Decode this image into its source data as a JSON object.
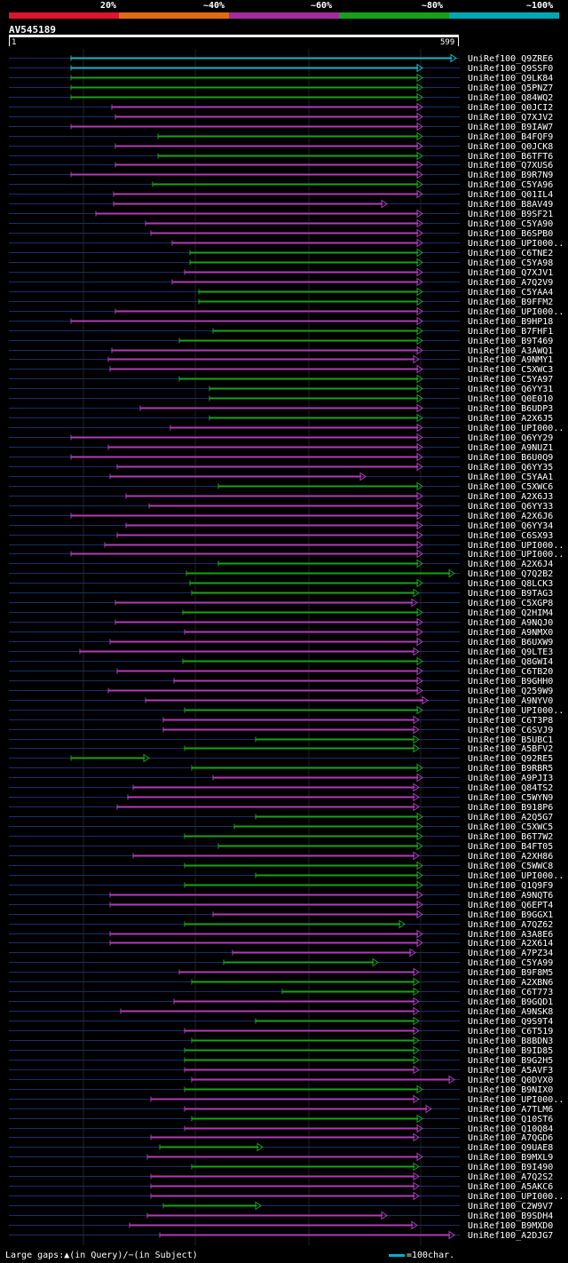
{
  "legend": {
    "colors": [
      "#e0142c",
      "#e06a14",
      "#a32c9c",
      "#18a018",
      "#00a8b4"
    ],
    "labels": [
      "20%",
      "~40%",
      "~60%",
      "~80%",
      "~100%"
    ]
  },
  "query": {
    "name": "AV545189",
    "start": "1",
    "end": "599"
  },
  "colors": {
    "magenta": "#b13bb8",
    "green": "#16a416",
    "cyan": "#14b8c8",
    "track": "#1a2e6a",
    "mark": "#ffff66"
  },
  "hits": [
    {
      "name": "UniRef100_Q9ZRE6",
      "x1": 80,
      "x2": 514,
      "c": "cyan"
    },
    {
      "name": "UniRef100_Q9SSF0",
      "x1": 80,
      "x2": 476,
      "c": "cyan"
    },
    {
      "name": "UniRef100_Q9LK84",
      "x1": 80,
      "x2": 476,
      "c": "green"
    },
    {
      "name": "UniRef100_Q5PNZ7",
      "x1": 80,
      "x2": 476,
      "c": "green"
    },
    {
      "name": "UniRef100_Q84WQ2",
      "x1": 80,
      "x2": 476,
      "c": "green"
    },
    {
      "name": "UniRef100_Q0JCI2",
      "x1": 126,
      "x2": 476,
      "c": "magenta"
    },
    {
      "name": "UniRef100_Q7XJV2",
      "x1": 130,
      "x2": 476,
      "c": "magenta"
    },
    {
      "name": "UniRef100_B9IAW7",
      "x1": 80,
      "x2": 476,
      "c": "magenta"
    },
    {
      "name": "UniRef100_B4FQF9",
      "x1": 178,
      "x2": 476,
      "c": "green"
    },
    {
      "name": "UniRef100_Q0JCK8",
      "x1": 130,
      "x2": 476,
      "c": "magenta"
    },
    {
      "name": "UniRef100_B6TFT6",
      "x1": 178,
      "x2": 476,
      "c": "green"
    },
    {
      "name": "UniRef100_Q7XUS6",
      "x1": 130,
      "x2": 476,
      "c": "magenta"
    },
    {
      "name": "UniRef100_B9R7N9",
      "x1": 80,
      "x2": 476,
      "c": "magenta"
    },
    {
      "name": "UniRef100_C5YA96",
      "x1": 172,
      "x2": 476,
      "c": "green"
    },
    {
      "name": "UniRef100_Q01IL4",
      "x1": 128,
      "x2": 476,
      "c": "magenta"
    },
    {
      "name": "UniRef100_B8AV49",
      "x1": 128,
      "x2": 436,
      "c": "magenta"
    },
    {
      "name": "UniRef100_B9SF21",
      "x1": 108,
      "x2": 476,
      "c": "magenta"
    },
    {
      "name": "UniRef100_C5YA90",
      "x1": 164,
      "x2": 476,
      "c": "magenta"
    },
    {
      "name": "UniRef100_B6SPB0",
      "x1": 170,
      "x2": 476,
      "c": "magenta"
    },
    {
      "name": "UniRef100_UPI000..",
      "x1": 194,
      "x2": 476,
      "c": "magenta"
    },
    {
      "name": "UniRef100_C6TNE2",
      "x1": 214,
      "x2": 476,
      "c": "green"
    },
    {
      "name": "UniRef100_C5YA98",
      "x1": 214,
      "x2": 476,
      "c": "green"
    },
    {
      "name": "UniRef100_Q7XJV1",
      "x1": 208,
      "x2": 476,
      "c": "magenta"
    },
    {
      "name": "UniRef100_A7Q2V9",
      "x1": 194,
      "x2": 476,
      "c": "magenta"
    },
    {
      "name": "UniRef100_C5YAA4",
      "x1": 224,
      "x2": 476,
      "c": "green"
    },
    {
      "name": "UniRef100_B9FFM2",
      "x1": 224,
      "x2": 476,
      "c": "green"
    },
    {
      "name": "UniRef100_UPI000..",
      "x1": 130,
      "x2": 476,
      "c": "magenta"
    },
    {
      "name": "UniRef100_B9HP18",
      "x1": 80,
      "x2": 476,
      "c": "magenta"
    },
    {
      "name": "UniRef100_B7FHF1",
      "x1": 240,
      "x2": 476,
      "c": "green"
    },
    {
      "name": "UniRef100_B9T469",
      "x1": 202,
      "x2": 476,
      "c": "green"
    },
    {
      "name": "UniRef100_A3AWQ1",
      "x1": 126,
      "x2": 476,
      "c": "magenta"
    },
    {
      "name": "UniRef100_A9NMY1",
      "x1": 122,
      "x2": 472,
      "c": "magenta"
    },
    {
      "name": "UniRef100_C5XWC3",
      "x1": 124,
      "x2": 476,
      "c": "magenta"
    },
    {
      "name": "UniRef100_C5YA97",
      "x1": 202,
      "x2": 476,
      "c": "green"
    },
    {
      "name": "UniRef100_Q6YY31",
      "x1": 236,
      "x2": 476,
      "c": "green"
    },
    {
      "name": "UniRef100_Q0E010",
      "x1": 236,
      "x2": 476,
      "c": "green"
    },
    {
      "name": "UniRef100_B6UDP3",
      "x1": 158,
      "x2": 476,
      "c": "magenta"
    },
    {
      "name": "UniRef100_A2X6J5",
      "x1": 236,
      "x2": 476,
      "c": "green"
    },
    {
      "name": "UniRef100_UPI000..",
      "x1": 192,
      "x2": 476,
      "c": "magenta"
    },
    {
      "name": "UniRef100_Q6YY29",
      "x1": 80,
      "x2": 476,
      "c": "magenta"
    },
    {
      "name": "UniRef100_A9NUZ1",
      "x1": 122,
      "x2": 476,
      "c": "magenta"
    },
    {
      "name": "UniRef100_B6U0Q9",
      "x1": 80,
      "x2": 476,
      "c": "magenta"
    },
    {
      "name": "UniRef100_Q6YY35",
      "x1": 132,
      "x2": 476,
      "c": "magenta"
    },
    {
      "name": "UniRef100_C5YAA1",
      "x1": 124,
      "x2": 412,
      "c": "magenta"
    },
    {
      "name": "UniRef100_C5XWC6",
      "x1": 246,
      "x2": 476,
      "c": "green"
    },
    {
      "name": "UniRef100_A2X6J3",
      "x1": 142,
      "x2": 476,
      "c": "magenta"
    },
    {
      "name": "UniRef100_Q6YY33",
      "x1": 168,
      "x2": 476,
      "c": "magenta"
    },
    {
      "name": "UniRef100_A2X6J6",
      "x1": 80,
      "x2": 476,
      "c": "magenta"
    },
    {
      "name": "UniRef100_Q6YY34",
      "x1": 142,
      "x2": 476,
      "c": "magenta"
    },
    {
      "name": "UniRef100_C6SX93",
      "x1": 132,
      "x2": 476,
      "c": "magenta"
    },
    {
      "name": "UniRef100_UPI000..",
      "x1": 118,
      "x2": 476,
      "c": "magenta"
    },
    {
      "name": "UniRef100_UPI000..",
      "x1": 80,
      "x2": 476,
      "c": "magenta"
    },
    {
      "name": "UniRef100_A2X6J4",
      "x1": 246,
      "x2": 476,
      "c": "green"
    },
    {
      "name": "UniRef100_Q7Q2B2",
      "x1": 210,
      "x2": 512,
      "c": "green"
    },
    {
      "name": "UniRef100_Q8LCK3",
      "x1": 214,
      "x2": 476,
      "c": "green"
    },
    {
      "name": "UniRef100_B9TAG3",
      "x1": 216,
      "x2": 472,
      "c": "green"
    },
    {
      "name": "UniRef100_C5XGP8",
      "x1": 130,
      "x2": 470,
      "c": "magenta"
    },
    {
      "name": "UniRef100_Q2HIM4",
      "x1": 206,
      "x2": 476,
      "c": "green"
    },
    {
      "name": "UniRef100_A9NQJ0",
      "x1": 130,
      "x2": 476,
      "c": "magenta"
    },
    {
      "name": "UniRef100_A9NMX0",
      "x1": 208,
      "x2": 476,
      "c": "magenta"
    },
    {
      "name": "UniRef100_B6UXW9",
      "x1": 124,
      "x2": 476,
      "c": "magenta"
    },
    {
      "name": "UniRef100_Q9LTE3",
      "x1": 90,
      "x2": 472,
      "c": "magenta"
    },
    {
      "name": "UniRef100_Q8GWI4",
      "x1": 206,
      "x2": 476,
      "c": "green"
    },
    {
      "name": "UniRef100_C6TB20",
      "x1": 132,
      "x2": 476,
      "c": "magenta"
    },
    {
      "name": "UniRef100_B9GHH0",
      "x1": 196,
      "x2": 476,
      "c": "magenta"
    },
    {
      "name": "UniRef100_Q259W9",
      "x1": 122,
      "x2": 476,
      "c": "magenta"
    },
    {
      "name": "UniRef100_A9NYV0",
      "x1": 164,
      "x2": 482,
      "c": "magenta"
    },
    {
      "name": "UniRef100_UPI000..",
      "x1": 208,
      "x2": 476,
      "c": "green"
    },
    {
      "name": "UniRef100_C6T3P8",
      "x1": 184,
      "x2": 472,
      "c": "magenta"
    },
    {
      "name": "UniRef100_C6SVJ9",
      "x1": 184,
      "x2": 472,
      "c": "magenta"
    },
    {
      "name": "UniRef100_B5UBC1",
      "x1": 288,
      "x2": 472,
      "c": "green"
    },
    {
      "name": "UniRef100_A5BFV2",
      "x1": 208,
      "x2": 472,
      "c": "green"
    },
    {
      "name": "UniRef100_Q92RE5",
      "x1": 80,
      "x2": 168,
      "c": "green"
    },
    {
      "name": "UniRef100_B9RBR5",
      "x1": 216,
      "x2": 476,
      "c": "green"
    },
    {
      "name": "UniRef100_A9PJI3",
      "x1": 240,
      "x2": 476,
      "c": "magenta"
    },
    {
      "name": "UniRef100_Q84TS2",
      "x1": 150,
      "x2": 472,
      "c": "magenta"
    },
    {
      "name": "UniRef100_C5WYN9",
      "x1": 144,
      "x2": 472,
      "c": "magenta"
    },
    {
      "name": "UniRef100_B918P6",
      "x1": 132,
      "x2": 472,
      "c": "magenta"
    },
    {
      "name": "UniRef100_A2Q5G7",
      "x1": 288,
      "x2": 476,
      "c": "green"
    },
    {
      "name": "UniRef100_C5XWC5",
      "x1": 264,
      "x2": 476,
      "c": "green"
    },
    {
      "name": "UniRef100_B6T7W2",
      "x1": 208,
      "x2": 476,
      "c": "green"
    },
    {
      "name": "UniRef100_B4FT05",
      "x1": 246,
      "x2": 476,
      "c": "green"
    },
    {
      "name": "UniRef100_A2XH86",
      "x1": 150,
      "x2": 472,
      "c": "magenta"
    },
    {
      "name": "UniRef100_C5WWC8",
      "x1": 208,
      "x2": 476,
      "c": "green"
    },
    {
      "name": "UniRef100_UPI000..",
      "x1": 288,
      "x2": 476,
      "c": "green"
    },
    {
      "name": "UniRef100_Q1Q9F9",
      "x1": 208,
      "x2": 476,
      "c": "green"
    },
    {
      "name": "UniRef100_A9NQT6",
      "x1": 124,
      "x2": 476,
      "c": "magenta"
    },
    {
      "name": "UniRef100_Q6EPT4",
      "x1": 124,
      "x2": 476,
      "c": "magenta"
    },
    {
      "name": "UniRef100_B9GGX1",
      "x1": 240,
      "x2": 476,
      "c": "magenta"
    },
    {
      "name": "UniRef100_A7QZ62",
      "x1": 208,
      "x2": 456,
      "c": "green"
    },
    {
      "name": "UniRef100_A3A8E6",
      "x1": 124,
      "x2": 476,
      "c": "magenta"
    },
    {
      "name": "UniRef100_A2X614",
      "x1": 124,
      "x2": 476,
      "c": "magenta"
    },
    {
      "name": "UniRef100_A7PZ34",
      "x1": 262,
      "x2": 468,
      "c": "magenta"
    },
    {
      "name": "UniRef100_C5YA99",
      "x1": 252,
      "x2": 426,
      "c": "green"
    },
    {
      "name": "UniRef100_B9F8M5",
      "x1": 202,
      "x2": 472,
      "c": "magenta"
    },
    {
      "name": "UniRef100_A2XBN6",
      "x1": 216,
      "x2": 472,
      "c": "green"
    },
    {
      "name": "UniRef100_C6T773",
      "x1": 318,
      "x2": 472,
      "c": "green"
    },
    {
      "name": "UniRef100_B9GQD1",
      "x1": 196,
      "x2": 472,
      "c": "magenta"
    },
    {
      "name": "UniRef100_A9NSK8",
      "x1": 136,
      "x2": 472,
      "c": "magenta"
    },
    {
      "name": "UniRef100_Q9S9T4",
      "x1": 288,
      "x2": 472,
      "c": "green"
    },
    {
      "name": "UniRef100_C6T519",
      "x1": 208,
      "x2": 472,
      "c": "magenta"
    },
    {
      "name": "UniRef100_B8BDN3",
      "x1": 216,
      "x2": 472,
      "c": "green"
    },
    {
      "name": "UniRef100_B9ID85",
      "x1": 208,
      "x2": 472,
      "c": "green"
    },
    {
      "name": "UniRef100_B9G2H5",
      "x1": 208,
      "x2": 472,
      "c": "green"
    },
    {
      "name": "UniRef100_A5AVF3",
      "x1": 208,
      "x2": 472,
      "c": "magenta"
    },
    {
      "name": "UniRef100_Q0DVX0",
      "x1": 216,
      "x2": 512,
      "c": "magenta"
    },
    {
      "name": "UniRef100_B9NIX0",
      "x1": 208,
      "x2": 476,
      "c": "green"
    },
    {
      "name": "UniRef100_UPI000..",
      "x1": 170,
      "x2": 472,
      "c": "magenta"
    },
    {
      "name": "UniRef100_A7TLM6",
      "x1": 208,
      "x2": 486,
      "c": "magenta"
    },
    {
      "name": "UniRef100_Q10ST6",
      "x1": 216,
      "x2": 476,
      "c": "green"
    },
    {
      "name": "UniRef100_Q10Q84",
      "x1": 208,
      "x2": 476,
      "c": "magenta"
    },
    {
      "name": "UniRef100_A7QGD6",
      "x1": 170,
      "x2": 472,
      "c": "magenta"
    },
    {
      "name": "UniRef100_Q9UAE8",
      "x1": 180,
      "x2": 296,
      "c": "green"
    },
    {
      "name": "UniRef100_B9MXL9",
      "x1": 166,
      "x2": 476,
      "c": "magenta"
    },
    {
      "name": "UniRef100_B9I490",
      "x1": 216,
      "x2": 472,
      "c": "green"
    },
    {
      "name": "UniRef100_A7Q2S2",
      "x1": 170,
      "x2": 472,
      "c": "magenta"
    },
    {
      "name": "UniRef100_A5AKC6",
      "x1": 170,
      "x2": 472,
      "c": "magenta"
    },
    {
      "name": "UniRef100_UPI000..",
      "x1": 170,
      "x2": 472,
      "c": "magenta"
    },
    {
      "name": "UniRef100_C2W9V7",
      "x1": 184,
      "x2": 294,
      "c": "green"
    },
    {
      "name": "UniRef100_B9SDH4",
      "x1": 166,
      "x2": 436,
      "c": "magenta"
    },
    {
      "name": "UniRef100_B9MXD0",
      "x1": 146,
      "x2": 470,
      "c": "magenta"
    },
    {
      "name": "UniRef100_A2DJG7",
      "x1": 180,
      "x2": 512,
      "c": "magenta"
    }
  ],
  "footer": {
    "gaps": "Large gaps:▲(in Query)/−(in Subject)",
    "scale": "=100char."
  }
}
